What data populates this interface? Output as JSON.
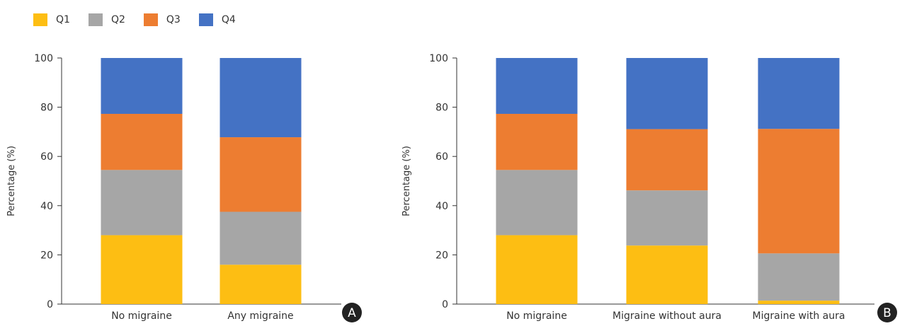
{
  "legend": [
    {
      "label": "Q1",
      "color": "#FDBE13"
    },
    {
      "label": "Q2",
      "color": "#A6A6A6"
    },
    {
      "label": "Q3",
      "color": "#ED7D31"
    },
    {
      "label": "Q4",
      "color": "#4472C4"
    }
  ],
  "chart_data": [
    {
      "type": "bar",
      "stacked": true,
      "panel_label": "A",
      "ylabel": "Percentage (%)",
      "ylim": [
        0,
        100
      ],
      "yticks": [
        0,
        20,
        40,
        60,
        80,
        100
      ],
      "categories": [
        "No migraine",
        "Any migraine"
      ],
      "series": [
        {
          "name": "Q1",
          "values": [
            28,
            16
          ]
        },
        {
          "name": "Q2",
          "values": [
            26.5,
            21.5
          ]
        },
        {
          "name": "Q3",
          "values": [
            22.8,
            30.3
          ]
        },
        {
          "name": "Q4",
          "values": [
            22.7,
            32.2
          ]
        }
      ]
    },
    {
      "type": "bar",
      "stacked": true,
      "panel_label": "B",
      "ylabel": "Percentage (%)",
      "ylim": [
        0,
        100
      ],
      "yticks": [
        0,
        20,
        40,
        60,
        80,
        100
      ],
      "categories": [
        "No migraine",
        "Migraine without aura",
        "Migraine with aura"
      ],
      "series": [
        {
          "name": "Q1",
          "values": [
            28,
            23.8,
            1.4
          ]
        },
        {
          "name": "Q2",
          "values": [
            26.5,
            22.4,
            19.2
          ]
        },
        {
          "name": "Q3",
          "values": [
            22.8,
            24.9,
            50.6
          ]
        },
        {
          "name": "Q4",
          "values": [
            22.7,
            28.9,
            28.8
          ]
        }
      ]
    }
  ]
}
